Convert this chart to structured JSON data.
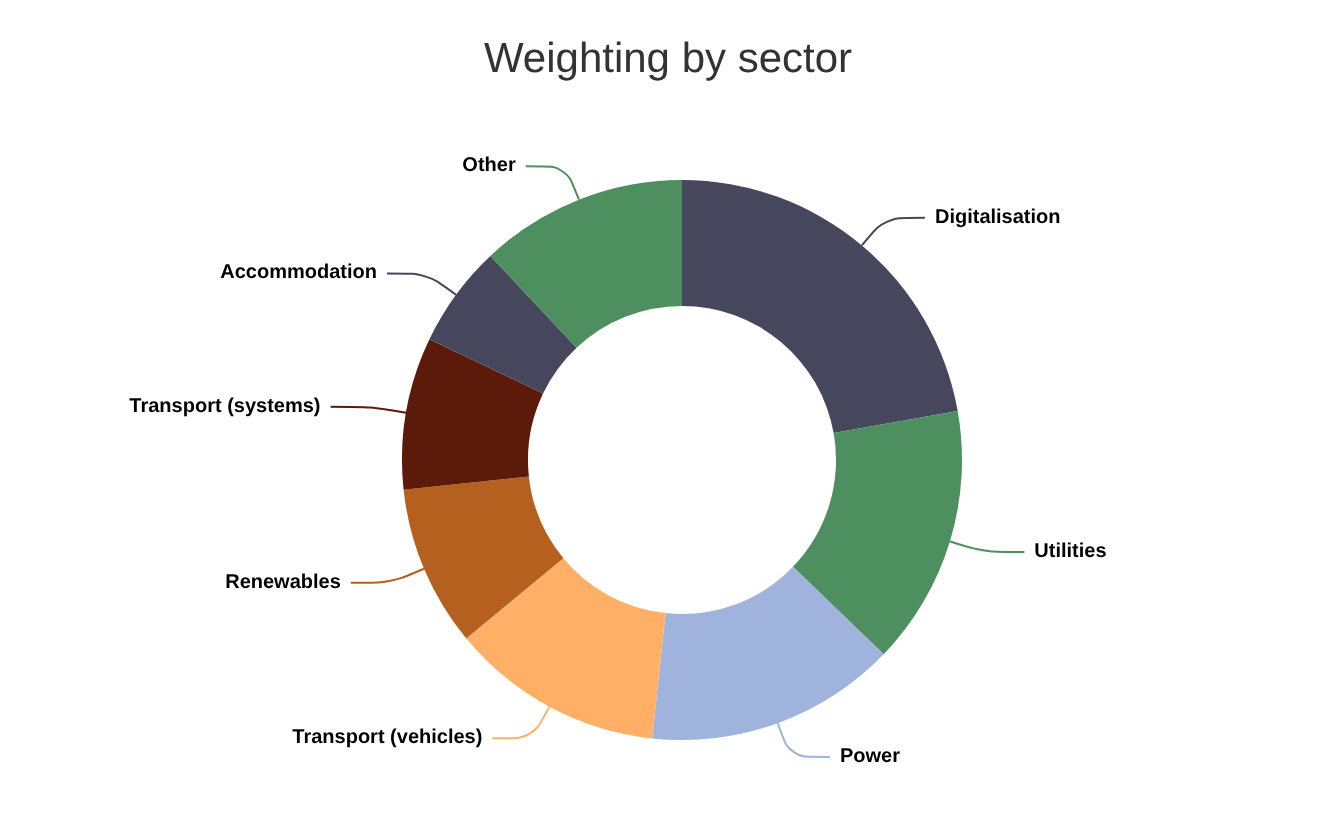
{
  "chart_data": {
    "type": "donut",
    "title": "Weighting by sector",
    "categories": [
      "Digitalisation",
      "Utilities",
      "Power",
      "Transport (vehicles)",
      "Renewables",
      "Transport (systems)",
      "Accommodation",
      "Other"
    ],
    "values": [
      22.2,
      15,
      14.5,
      12.3,
      9.3,
      8.8,
      5.9,
      12
    ],
    "colors": [
      "#46475c",
      "#4e8f5f",
      "#9fb3dc",
      "#ffb066",
      "#b5601e",
      "#5c1a0a",
      "#46475c",
      "#4e8f5f"
    ],
    "legend": false
  }
}
